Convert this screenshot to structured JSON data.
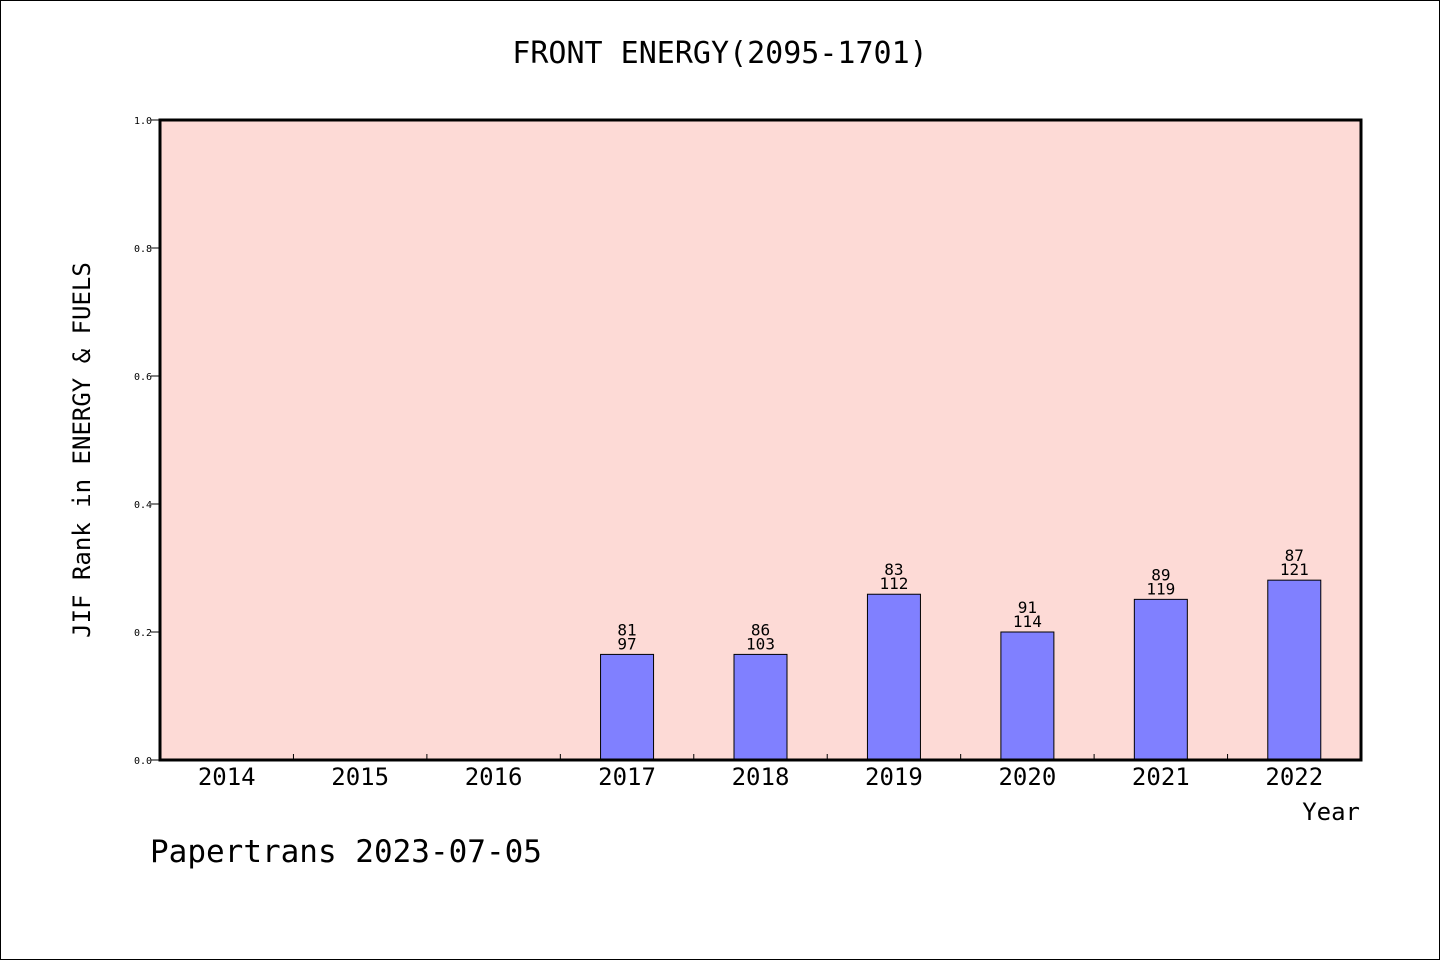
{
  "title": "FRONT ENERGY(2095-1701)",
  "footer": "Papertrans 2023-07-05",
  "colors": {
    "plot_background": "#fddad6",
    "bar_fill": "#8080ff",
    "axis": "#000000"
  },
  "chart_data": {
    "type": "bar",
    "title": "FRONT ENERGY(2095-1701)",
    "xlabel": "Year",
    "ylabel": "JIF Rank in ENERGY & FUELS",
    "ylim": [
      0,
      1.0
    ],
    "yticks": [
      "0.0",
      "0.2",
      "0.4",
      "0.6",
      "0.8",
      "1.0"
    ],
    "grid": false,
    "categories": [
      "2014",
      "2015",
      "2016",
      "2017",
      "2018",
      "2019",
      "2020",
      "2021",
      "2022"
    ],
    "values": [
      null,
      null,
      null,
      0.165,
      0.165,
      0.259,
      0.2,
      0.251,
      0.281
    ],
    "labels_top": [
      "",
      "",
      "",
      "81",
      "86",
      "83",
      "91",
      "89",
      "87"
    ],
    "labels_bottom": [
      "",
      "",
      "",
      "97",
      "103",
      "112",
      "114",
      "119",
      "121"
    ]
  }
}
